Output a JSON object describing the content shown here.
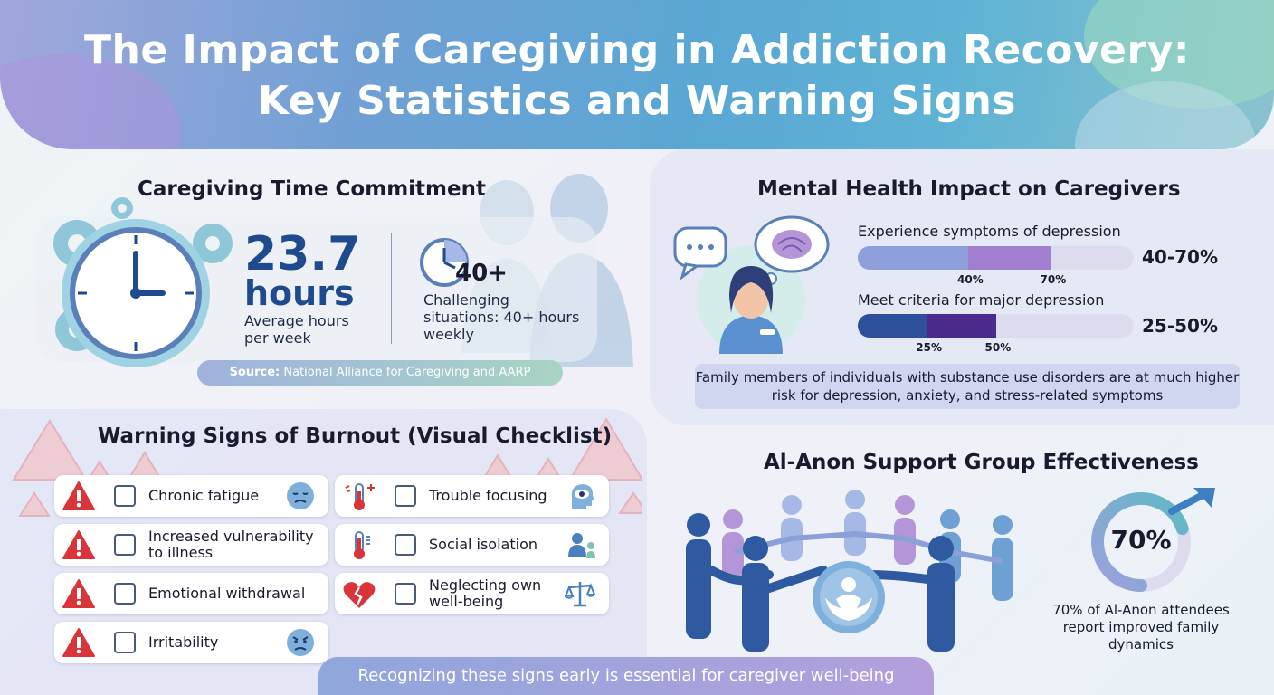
{
  "header": {
    "title_line1": "The Impact of Caregiving in Addiction Recovery:",
    "title_line2": "Key Statistics and Warning Signs"
  },
  "time_commitment": {
    "title": "Caregiving Time Commitment",
    "average_value": "23.7",
    "average_unit": "hours",
    "average_label": "Average hours per week",
    "challenging_value": "40+",
    "challenging_label": "Challenging situations: 40+ hours weekly",
    "source_prefix": "Source:",
    "source_text": "National Alliance for Caregiving and AARP"
  },
  "mental_health": {
    "title": "Mental Health Impact on Caregivers",
    "bars": [
      {
        "label": "Experience symptoms of depression",
        "low": 40,
        "high": 70,
        "low_label": "40%",
        "high_label": "70%",
        "range_label": "40-70%",
        "color_light": "#8f9fdb",
        "color_dark": "#a27fd0"
      },
      {
        "label": "Meet criteria for major depression",
        "low": 25,
        "high": 50,
        "low_label": "25%",
        "high_label": "50%",
        "range_label": "25-50%",
        "color_light": "#2e4f9a",
        "color_dark": "#4a2a8a"
      }
    ],
    "note": "Family members of individuals with substance use disorders are at much higher risk for depression, anxiety, and stress-related symptoms"
  },
  "burnout": {
    "title": "Warning Signs of Burnout (Visual Checklist)",
    "left_items": [
      {
        "label": "Chronic fatigue",
        "icon": "tired-face-icon"
      },
      {
        "label": "Increased vulnerability to illness",
        "icon": ""
      },
      {
        "label": "Emotional withdrawal",
        "icon": ""
      },
      {
        "label": "Irritability",
        "icon": "angry-face-icon"
      }
    ],
    "right_items": [
      {
        "label": "Trouble focusing",
        "icon": "head-eye-icon"
      },
      {
        "label": "Social isolation",
        "icon": "isolated-person-icon"
      },
      {
        "label": "Neglecting own well-being",
        "icon": "scales-icon"
      }
    ],
    "footer": "Recognizing these signs early is essential for caregiver well-being"
  },
  "alanon": {
    "title": "Al-Anon Support Group Effectiveness",
    "percent": 70,
    "percent_label": "70%",
    "note": "70% of Al-Anon attendees report improved family dynamics"
  },
  "colors": {
    "accent_blue": "#1f4b8e",
    "warning_red": "#d8343a",
    "bar_track": "#dcdcee"
  }
}
